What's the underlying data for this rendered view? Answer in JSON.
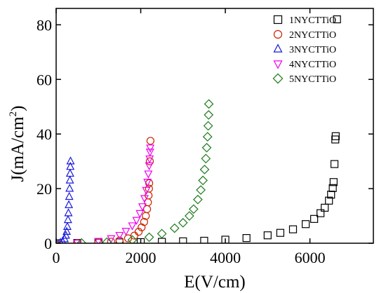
{
  "chart_data": {
    "type": "scatter",
    "title": "",
    "xlabel": "E(V/cm)",
    "ylabel_main": "J(mA/cm",
    "ylabel_sup": "2",
    "ylabel_close": ")",
    "xlim": [
      0,
      7500
    ],
    "ylim": [
      0,
      86
    ],
    "x_ticks": [
      0,
      2000,
      4000,
      6000
    ],
    "x_tick_labels": [
      "0",
      "2000",
      "4000",
      "6000"
    ],
    "y_ticks": [
      0,
      20,
      40,
      60,
      80
    ],
    "y_tick_labels": [
      "0",
      "20",
      "40",
      "60",
      "80"
    ],
    "grid": false,
    "legend_position": "top-right",
    "series": [
      {
        "name": "1NYCTTiO",
        "marker": "square",
        "color": "#000000",
        "points": [
          [
            0,
            0
          ],
          [
            500,
            0.1
          ],
          [
            1000,
            0.2
          ],
          [
            1500,
            0.3
          ],
          [
            2000,
            0.4
          ],
          [
            2500,
            0.5
          ],
          [
            3000,
            0.7
          ],
          [
            3500,
            0.9
          ],
          [
            4000,
            1.3
          ],
          [
            4500,
            1.9
          ],
          [
            5000,
            2.9
          ],
          [
            5300,
            3.8
          ],
          [
            5600,
            5.1
          ],
          [
            5900,
            7.0
          ],
          [
            6100,
            8.9
          ],
          [
            6250,
            11.0
          ],
          [
            6350,
            13.0
          ],
          [
            6450,
            15.6
          ],
          [
            6500,
            17.8
          ],
          [
            6540,
            20.2
          ],
          [
            6560,
            22.4
          ],
          [
            6580,
            29.0
          ],
          [
            6600,
            38.0
          ],
          [
            6610,
            39.2
          ],
          [
            6640,
            82.0
          ]
        ]
      },
      {
        "name": "2NYCTTiO",
        "marker": "circle",
        "color": "#cc2200",
        "points": [
          [
            0,
            0
          ],
          [
            500,
            0.1
          ],
          [
            1000,
            0.3
          ],
          [
            1300,
            0.6
          ],
          [
            1500,
            1.0
          ],
          [
            1700,
            1.8
          ],
          [
            1850,
            2.8
          ],
          [
            1950,
            4.2
          ],
          [
            2020,
            5.8
          ],
          [
            2080,
            7.8
          ],
          [
            2120,
            10.0
          ],
          [
            2150,
            12.5
          ],
          [
            2170,
            15.0
          ],
          [
            2185,
            17.5
          ],
          [
            2195,
            20.0
          ],
          [
            2200,
            22.0
          ],
          [
            2215,
            30.0
          ],
          [
            2230,
            37.5
          ]
        ]
      },
      {
        "name": "3NYCTTiO",
        "marker": "triangle-up",
        "color": "#1a1adb",
        "points": [
          [
            0,
            0
          ],
          [
            100,
            0.2
          ],
          [
            150,
            0.6
          ],
          [
            200,
            1.5
          ],
          [
            230,
            2.8
          ],
          [
            250,
            4.2
          ],
          [
            265,
            6.0
          ],
          [
            280,
            8.5
          ],
          [
            290,
            11.0
          ],
          [
            300,
            14.0
          ],
          [
            310,
            17.0
          ],
          [
            318,
            20.0
          ],
          [
            325,
            23.0
          ],
          [
            330,
            25.5
          ],
          [
            335,
            28.0
          ],
          [
            340,
            30.0
          ]
        ]
      },
      {
        "name": "4NYCTTiO",
        "marker": "triangle-down",
        "color": "#ee00ee",
        "points": [
          [
            0,
            0
          ],
          [
            500,
            0.2
          ],
          [
            1000,
            0.8
          ],
          [
            1300,
            1.8
          ],
          [
            1500,
            3.0
          ],
          [
            1650,
            4.5
          ],
          [
            1800,
            6.5
          ],
          [
            1900,
            8.5
          ],
          [
            1980,
            11.0
          ],
          [
            2040,
            13.5
          ],
          [
            2090,
            16.5
          ],
          [
            2130,
            19.5
          ],
          [
            2160,
            22.5
          ],
          [
            2180,
            25.5
          ],
          [
            2200,
            28.5
          ],
          [
            2210,
            31.0
          ],
          [
            2220,
            33.5
          ],
          [
            2225,
            35.0
          ]
        ]
      },
      {
        "name": "5NYCTTiO",
        "marker": "diamond",
        "color": "#1a7a1a",
        "points": [
          [
            0,
            0
          ],
          [
            600,
            0.1
          ],
          [
            1200,
            0.4
          ],
          [
            1800,
            1.2
          ],
          [
            2200,
            2.2
          ],
          [
            2500,
            3.5
          ],
          [
            2800,
            5.5
          ],
          [
            3000,
            7.5
          ],
          [
            3150,
            10.0
          ],
          [
            3250,
            12.5
          ],
          [
            3350,
            16.0
          ],
          [
            3420,
            19.5
          ],
          [
            3470,
            23.0
          ],
          [
            3510,
            27.0
          ],
          [
            3540,
            31.0
          ],
          [
            3560,
            35.0
          ],
          [
            3580,
            39.0
          ],
          [
            3595,
            43.0
          ],
          [
            3605,
            47.0
          ],
          [
            3610,
            51.0
          ]
        ]
      }
    ]
  }
}
